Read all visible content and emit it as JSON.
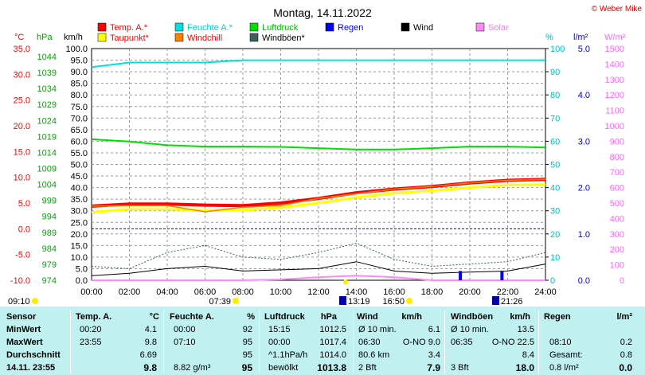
{
  "header": {
    "title": "Montag, 14.11.2022",
    "copyright": "© Weber Mike"
  },
  "axes": {
    "temp_unit": "°C",
    "press_unit": "hPa",
    "wind_unit": "km/h",
    "hum_unit": "%",
    "rain_unit": "l/m²",
    "solar_unit": "W/m²",
    "temp_ticks": [
      "35.0",
      "30.0",
      "25.0",
      "20.0",
      "15.0",
      "10.0",
      "5.0",
      "0.0",
      "-5.0",
      "-10.0"
    ],
    "press_ticks": [
      "1044",
      "1039",
      "1034",
      "1029",
      "1024",
      "1019",
      "1014",
      "1009",
      "1004",
      "999",
      "994",
      "989",
      "984",
      "979",
      "974"
    ],
    "wind_ticks": [
      "100.0",
      "95.0",
      "90.0",
      "85.0",
      "80.0",
      "75.0",
      "70.0",
      "65.0",
      "60.0",
      "55.0",
      "50.0",
      "45.0",
      "40.0",
      "35.0",
      "30.0",
      "25.0",
      "20.0",
      "15.0",
      "10.0",
      "5.0",
      "0.0"
    ],
    "hum_ticks": [
      "100",
      "90",
      "80",
      "70",
      "60",
      "50",
      "40",
      "30",
      "20",
      "10",
      "0"
    ],
    "rain_ticks": [
      "5.0",
      "4.0",
      "3.0",
      "2.0",
      "1.0",
      "0.0"
    ],
    "solar_ticks": [
      "1500",
      "1400",
      "1300",
      "1200",
      "1100",
      "1000",
      "900",
      "800",
      "700",
      "600",
      "500",
      "400",
      "300",
      "200",
      "100",
      "0"
    ],
    "time_ticks": [
      "00:00",
      "02:00",
      "04:00",
      "06:00",
      "08:00",
      "10:00",
      "12:00",
      "14:00",
      "16:00",
      "18:00",
      "20:00",
      "22:00",
      "24:00"
    ]
  },
  "legend": [
    {
      "label": "Temp. A.*",
      "color": "#ff0000",
      "text_color": "#ff0000"
    },
    {
      "label": "Feuchte A.*",
      "color": "#00e0e0",
      "text_color": "#00d0d0"
    },
    {
      "label": "Luftdruck",
      "color": "#00dd00",
      "text_color": "#00bb00"
    },
    {
      "label": "Regen",
      "color": "#0000ff",
      "text_color": "#0000ff"
    },
    {
      "label": "Wind",
      "color": "#000000",
      "text_color": "#000000"
    },
    {
      "label": "Solar",
      "color": "#ff88ff",
      "text_color": "#ff77ff"
    },
    {
      "label": "Taupunkt*",
      "color": "#ffff00",
      "text_color": "#ff0000"
    },
    {
      "label": "Windchill",
      "color": "#ff8000",
      "text_color": "#ff0000"
    },
    {
      "label": "Windböen*",
      "color": "#406060",
      "text_color": "#000000"
    }
  ],
  "markers": {
    "sunrise": "07:39",
    "sunset": "16:50",
    "moonrise_like": "13:19",
    "moon2": "21:26",
    "first_time": "09:10"
  },
  "chart_data": {
    "type": "line",
    "title": "Montag, 14.11.2022",
    "x_range": [
      "00:00",
      "24:00"
    ],
    "temp_axis": [
      -10,
      35
    ],
    "wind_axis": [
      0,
      100
    ],
    "humidity_axis": [
      0,
      100
    ],
    "pressure_axis": [
      974,
      1044
    ],
    "rain_axis": [
      0,
      5
    ],
    "solar_axis": [
      0,
      1500
    ],
    "x_hours": [
      0,
      2,
      4,
      6,
      8,
      10,
      12,
      14,
      16,
      18,
      20,
      22,
      24
    ],
    "series": [
      {
        "name": "Temp. A.*",
        "axis": "temp",
        "color": "#ff0000",
        "values": [
          4.4,
          4.8,
          4.8,
          4.6,
          4.5,
          5.0,
          5.9,
          7.0,
          7.7,
          8.2,
          8.9,
          9.4,
          9.6
        ]
      },
      {
        "name": "Taupunkt*",
        "axis": "temp",
        "color": "#ffff00",
        "values": [
          3.2,
          3.8,
          3.8,
          3.6,
          3.6,
          4.1,
          5.0,
          6.1,
          6.9,
          7.4,
          8.0,
          8.5,
          8.6
        ]
      },
      {
        "name": "Windchill",
        "axis": "temp",
        "color": "#ff8000",
        "values": [
          4.4,
          4.5,
          4.5,
          3.3,
          4.2,
          4.5,
          5.9,
          6.8,
          7.7,
          8.2,
          8.9,
          9.4,
          9.6
        ]
      },
      {
        "name": "Feuchte A.*",
        "axis": "humidity",
        "color": "#00e0e0",
        "values": [
          92,
          94,
          94,
          94,
          95,
          95,
          95,
          95,
          95,
          95,
          95,
          95,
          95
        ]
      },
      {
        "name": "Luftdruck",
        "axis": "pressure",
        "color": "#00dd00",
        "values": [
          1016.6,
          1015.9,
          1014.8,
          1014.4,
          1014.4,
          1014.3,
          1013.9,
          1013.5,
          1013.5,
          1013.9,
          1014.4,
          1014.4,
          1014.1
        ]
      },
      {
        "name": "Wind",
        "axis": "wind",
        "color": "#000000",
        "values": [
          2.0,
          3.0,
          5.0,
          6.0,
          4.0,
          4.5,
          5.0,
          8.0,
          4.0,
          3.0,
          3.5,
          4.0,
          7.0
        ]
      },
      {
        "name": "Windböen*",
        "axis": "wind",
        "color": "#406060",
        "values": [
          6.0,
          5.0,
          12.0,
          15.0,
          10.0,
          9.0,
          12.0,
          16.0,
          9.0,
          6.0,
          7.0,
          8.0,
          12.0
        ]
      },
      {
        "name": "Solar",
        "axis": "solar",
        "color": "#ff88ff",
        "values": [
          0,
          0,
          0,
          0,
          0,
          5,
          20,
          30,
          20,
          0,
          0,
          0,
          0
        ]
      }
    ],
    "rain_bars": [
      {
        "hour": 19.5,
        "value": 0.2
      },
      {
        "hour": 21.7,
        "value": 0.2
      }
    ]
  },
  "table": {
    "headers": [
      "Sensor",
      "Temp. A.",
      "°C",
      "Feuchte A.",
      "%",
      "Luftdruck",
      "hPa",
      "Wind",
      "km/h",
      "Windböen",
      "km/h",
      "Regen",
      "l/m²"
    ],
    "rows": [
      [
        "MinWert",
        "00:20",
        "4.1",
        "00:00",
        "92",
        "15:15",
        "1012.5",
        "Ø 10 min.",
        "6.1",
        "Ø 10 min.",
        "13.5",
        "",
        ""
      ],
      [
        "MaxWert",
        "23:55",
        "9.8",
        "07:10",
        "95",
        "00:00",
        "1017.4",
        "06:30",
        "O-NO 9.0",
        "06:35",
        "O-NO 22.5",
        "08:10",
        "0.2"
      ],
      [
        "Durchschnitt",
        "",
        "6.69",
        "",
        "95",
        "^1.1hPa/h",
        "1014.0",
        "80.6 km",
        "3.4",
        "",
        "8.4",
        "Gesamt:",
        "0.8"
      ],
      [
        "14.11. 23:55",
        "",
        "9.8",
        "8.82 g/m³",
        "95",
        "bewölkt",
        "1013.8",
        "2 Bft",
        "7.9",
        "3 Bft",
        "18.0",
        "0.8 l/m²",
        "0.0"
      ]
    ]
  }
}
